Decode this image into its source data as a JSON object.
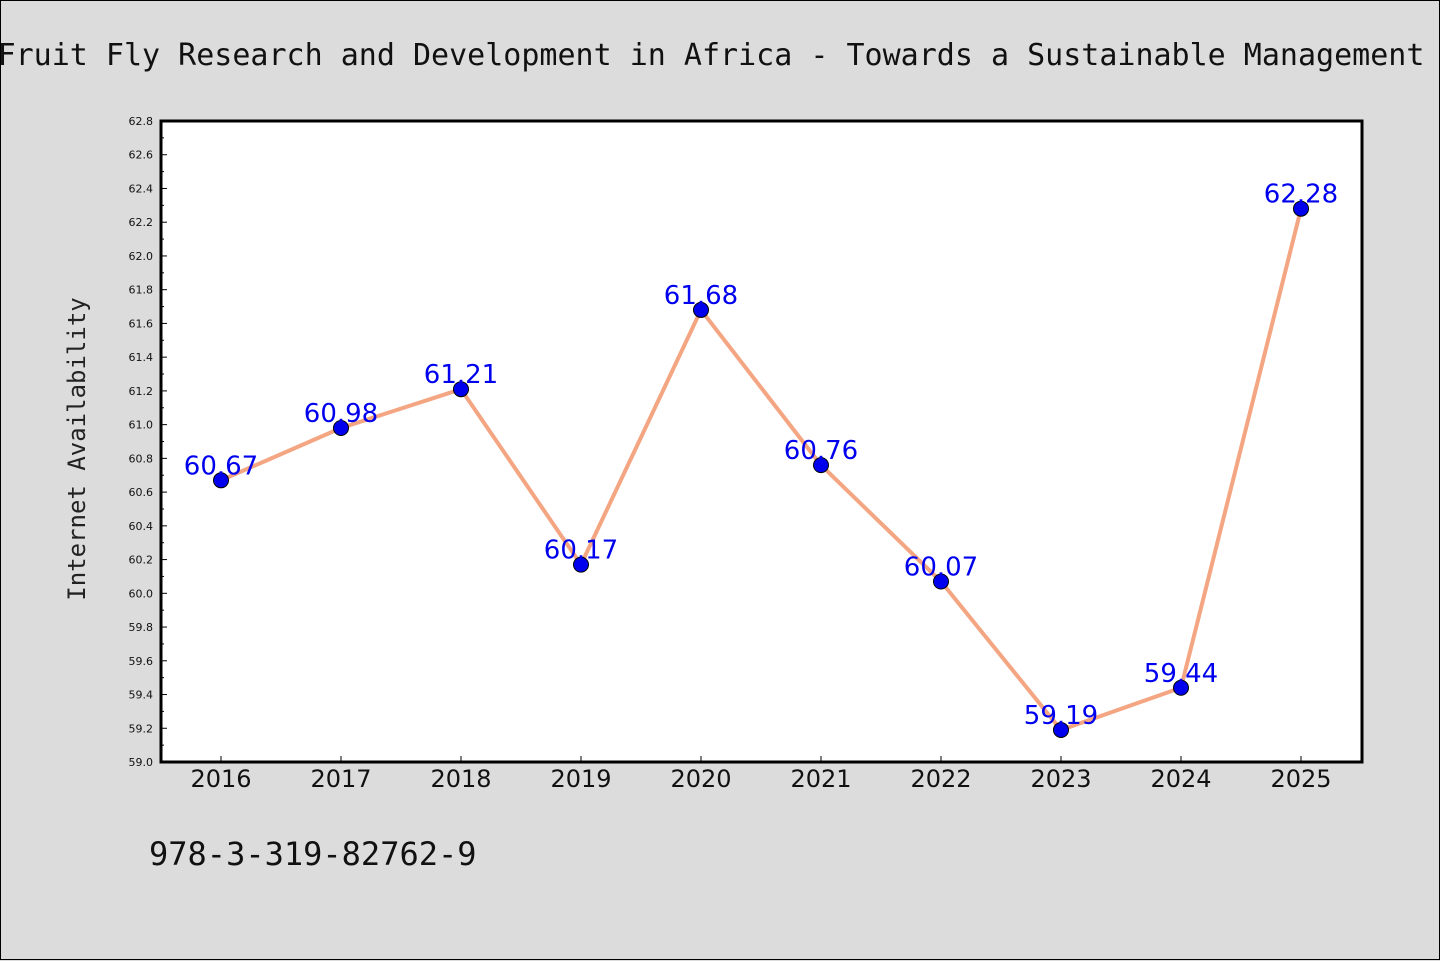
{
  "chart_data": {
    "type": "line",
    "title": "Fruit Fly Research and Development in Africa - Towards a Sustainable Management",
    "xlabel": "",
    "ylabel": "Internet Availability",
    "categories": [
      "2016",
      "2017",
      "2018",
      "2019",
      "2020",
      "2021",
      "2022",
      "2023",
      "2024",
      "2025"
    ],
    "values": [
      60.67,
      60.98,
      61.21,
      60.17,
      61.68,
      60.76,
      60.07,
      59.19,
      59.44,
      62.28
    ],
    "data_labels": [
      "60.67",
      "60.98",
      "61.21",
      "60.17",
      "61.68",
      "60.76",
      "60.07",
      "59.19",
      "59.44",
      "62.28"
    ],
    "ylim": [
      59.0,
      62.8
    ],
    "yticks": [
      "59.0",
      "59.2",
      "59.4",
      "59.6",
      "59.8",
      "60.0",
      "60.2",
      "60.4",
      "60.6",
      "60.8",
      "61.0",
      "61.2",
      "61.4",
      "61.6",
      "61.8",
      "62.0",
      "62.2",
      "62.4",
      "62.6",
      "62.8"
    ],
    "grid": false,
    "legend": "none",
    "line_color": "#f4a582",
    "marker_color": "#0000ee",
    "label_color": "#0000ee"
  },
  "caption": "978-3-319-82762-9"
}
